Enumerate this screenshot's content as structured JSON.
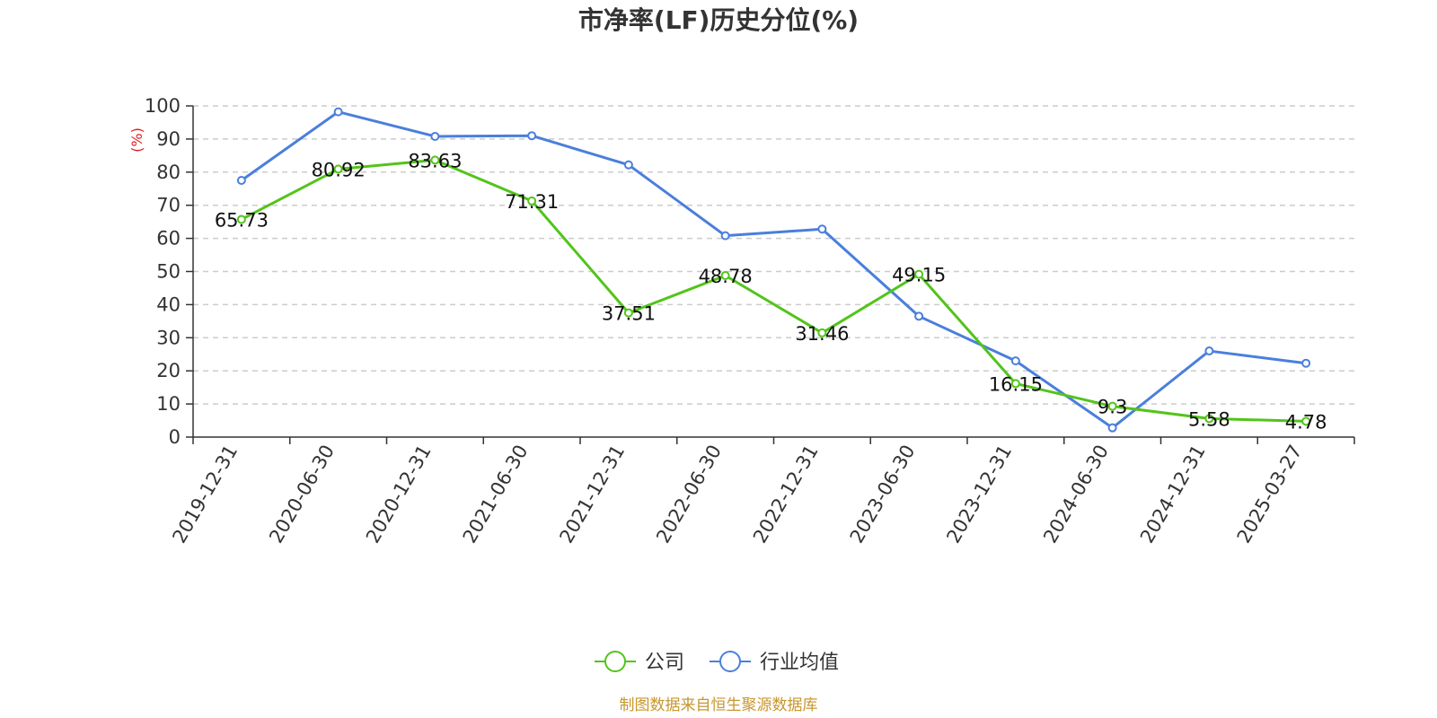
{
  "chart_data": {
    "type": "line",
    "title": "市净率(LF)历史分位(%)",
    "ylabel": "(%)",
    "ylim": [
      0,
      100
    ],
    "yticks": [
      0,
      10,
      20,
      30,
      40,
      50,
      60,
      70,
      80,
      90,
      100
    ],
    "grid": true,
    "legend_position": "bottom",
    "categories": [
      "2019-12-31",
      "2020-06-30",
      "2020-12-31",
      "2021-06-30",
      "2021-12-31",
      "2022-06-30",
      "2022-12-31",
      "2023-06-30",
      "2023-12-31",
      "2024-06-30",
      "2024-12-31",
      "2025-03-27"
    ],
    "series": [
      {
        "name": "公司",
        "color": "#52c41a",
        "values": [
          65.73,
          80.92,
          83.63,
          71.31,
          37.51,
          48.78,
          31.46,
          49.15,
          16.15,
          9.3,
          5.58,
          4.78
        ],
        "labels": [
          "65.73",
          "80.92",
          "83.63",
          "71.31",
          "37.51",
          "48.78",
          "31.46",
          "49.15",
          "16.15",
          "9.3",
          "5.58",
          "4.78"
        ]
      },
      {
        "name": "行业均值",
        "color": "#4a7fdc",
        "values": [
          77.5,
          98.2,
          90.8,
          91.0,
          82.2,
          60.8,
          62.8,
          36.5,
          23.0,
          2.8,
          26.0,
          22.3
        ]
      }
    ],
    "source": "制图数据来自恒生聚源数据库",
    "source_color": "#c8962d",
    "ylabel_color": "#e02020"
  }
}
